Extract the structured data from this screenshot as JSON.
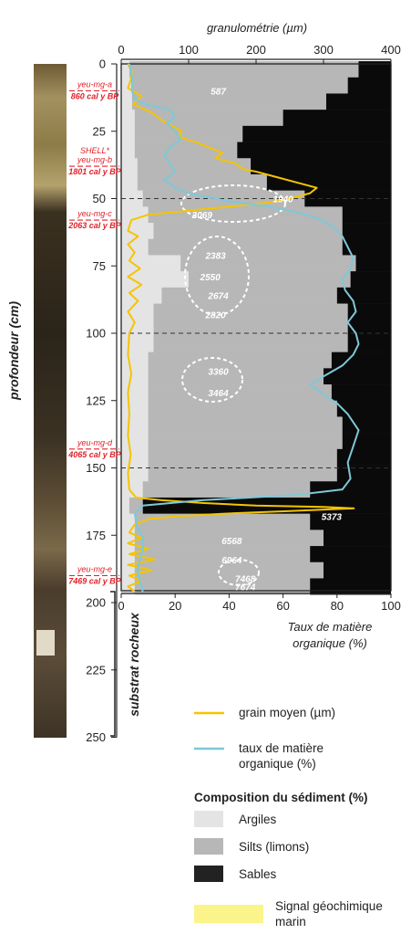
{
  "chart_data": {
    "type": "line",
    "top_axis_title": "granulométrie (µm)",
    "top_ticks": [
      0,
      100,
      200,
      300,
      400
    ],
    "bottom_axis_title": [
      "Taux de matière",
      "organique (%)"
    ],
    "bottom_ticks": [
      0,
      20,
      40,
      60,
      80,
      100
    ],
    "y_axis_title": "profondeur (cm)",
    "y_ticks": [
      0,
      25,
      50,
      75,
      100,
      125,
      150,
      175,
      200,
      225,
      250
    ],
    "substrate_label": "substrat rocheux",
    "dashed_depths": [
      50,
      100,
      150
    ],
    "samples": [
      {
        "name": "yeu-mg-a",
        "age": "860 cal y BP",
        "depth": 10
      },
      {
        "lines": [
          "SHELL*",
          "yeu-mg-b"
        ],
        "age": "1801 cal y BP",
        "depth": 38
      },
      {
        "name": "yeu-mg-c",
        "age": "2063 cal y BP",
        "depth": 58
      },
      {
        "name": "yeu-mg-d",
        "age": "4065 cal y BP",
        "depth": 143
      },
      {
        "name": "yeu-mg-e",
        "age": "7469 cal y BP",
        "depth": 190
      }
    ],
    "age_labels": [
      {
        "text": "587",
        "depth": 10,
        "x": 36
      },
      {
        "text": "1940",
        "depth": 50,
        "x": 60
      },
      {
        "text": "2069",
        "depth": 56,
        "x": 30
      },
      {
        "text": "2383",
        "depth": 71,
        "x": 35
      },
      {
        "text": "2550",
        "depth": 79,
        "x": 33
      },
      {
        "text": "2674",
        "depth": 86,
        "x": 36
      },
      {
        "text": "2820",
        "depth": 93,
        "x": 35
      },
      {
        "text": "3360",
        "depth": 114,
        "x": 36
      },
      {
        "text": "3464",
        "depth": 122,
        "x": 36
      },
      {
        "text": "5373",
        "depth": 168,
        "x": 78
      },
      {
        "text": "6568",
        "depth": 177,
        "x": 41
      },
      {
        "text": "6964",
        "depth": 184,
        "x": 41
      },
      {
        "text": "7468",
        "depth": 191,
        "x": 46
      },
      {
        "text": "7674",
        "depth": 194,
        "x": 46
      }
    ],
    "series": [
      {
        "name": "grain moyen (µm)",
        "axis": "top",
        "color": "#f5c400",
        "points": [
          [
            10,
            0
          ],
          [
            16,
            3
          ],
          [
            14,
            6
          ],
          [
            10,
            9
          ],
          [
            30,
            12
          ],
          [
            18,
            15
          ],
          [
            45,
            18
          ],
          [
            60,
            21
          ],
          [
            75,
            23
          ],
          [
            90,
            25
          ],
          [
            85,
            27
          ],
          [
            110,
            29
          ],
          [
            130,
            31
          ],
          [
            150,
            33
          ],
          [
            140,
            35
          ],
          [
            170,
            37
          ],
          [
            180,
            39
          ],
          [
            200,
            40
          ],
          [
            230,
            42
          ],
          [
            260,
            44
          ],
          [
            290,
            46
          ],
          [
            280,
            48
          ],
          [
            250,
            50
          ],
          [
            230,
            51
          ],
          [
            200,
            52
          ],
          [
            160,
            53
          ],
          [
            120,
            54
          ],
          [
            80,
            55
          ],
          [
            40,
            56
          ],
          [
            15,
            58
          ],
          [
            10,
            62
          ],
          [
            25,
            64
          ],
          [
            10,
            67
          ],
          [
            20,
            70
          ],
          [
            12,
            73
          ],
          [
            28,
            76
          ],
          [
            10,
            79
          ],
          [
            30,
            82
          ],
          [
            12,
            85
          ],
          [
            25,
            88
          ],
          [
            10,
            92
          ],
          [
            20,
            96
          ],
          [
            12,
            100
          ],
          [
            10,
            108
          ],
          [
            15,
            115
          ],
          [
            10,
            122
          ],
          [
            12,
            130
          ],
          [
            10,
            138
          ],
          [
            14,
            145
          ],
          [
            10,
            152
          ],
          [
            12,
            158
          ],
          [
            22,
            161
          ],
          [
            60,
            162
          ],
          [
            120,
            163
          ],
          [
            200,
            164
          ],
          [
            300,
            164.5
          ],
          [
            345,
            165
          ],
          [
            250,
            166
          ],
          [
            150,
            167
          ],
          [
            80,
            168
          ],
          [
            40,
            169
          ],
          [
            20,
            171
          ],
          [
            12,
            174
          ],
          [
            30,
            176
          ],
          [
            10,
            178
          ],
          [
            40,
            180
          ],
          [
            12,
            182
          ],
          [
            50,
            184
          ],
          [
            10,
            186
          ],
          [
            45,
            188
          ],
          [
            12,
            190
          ],
          [
            30,
            192
          ],
          [
            10,
            194
          ],
          [
            20,
            196
          ]
        ]
      },
      {
        "name": "taux de matière organique (%)",
        "axis": "bottom",
        "color": "#7ec8d8",
        "points": [
          [
            3,
            0
          ],
          [
            4,
            5
          ],
          [
            4,
            10
          ],
          [
            5,
            13
          ],
          [
            9,
            15
          ],
          [
            18,
            17
          ],
          [
            20,
            20
          ],
          [
            17,
            22
          ],
          [
            20,
            25
          ],
          [
            22,
            28
          ],
          [
            18,
            31
          ],
          [
            16,
            34
          ],
          [
            18,
            37
          ],
          [
            20,
            40
          ],
          [
            16,
            43
          ],
          [
            20,
            46
          ],
          [
            25,
            48
          ],
          [
            40,
            51
          ],
          [
            55,
            53
          ],
          [
            65,
            55
          ],
          [
            72,
            57
          ],
          [
            78,
            60
          ],
          [
            82,
            64
          ],
          [
            84,
            68
          ],
          [
            86,
            72
          ],
          [
            85,
            76
          ],
          [
            82,
            80
          ],
          [
            83,
            84
          ],
          [
            86,
            88
          ],
          [
            87,
            92
          ],
          [
            84,
            96
          ],
          [
            87,
            100
          ],
          [
            88,
            104
          ],
          [
            86,
            108
          ],
          [
            82,
            112
          ],
          [
            75,
            116
          ],
          [
            70,
            119
          ],
          [
            74,
            122
          ],
          [
            80,
            126
          ],
          [
            84,
            130
          ],
          [
            88,
            136
          ],
          [
            86,
            142
          ],
          [
            84,
            148
          ],
          [
            85,
            154
          ],
          [
            82,
            158
          ],
          [
            65,
            160
          ],
          [
            30,
            162
          ],
          [
            8,
            164
          ],
          [
            5,
            167
          ],
          [
            6,
            172
          ],
          [
            8,
            176
          ],
          [
            8,
            180
          ],
          [
            7,
            184
          ],
          [
            6,
            188
          ],
          [
            7,
            192
          ],
          [
            8,
            196
          ]
        ]
      }
    ],
    "bars": [
      {
        "depth": 2,
        "clay": 3,
        "silt": 85
      },
      {
        "depth": 8,
        "clay": 4,
        "silt": 80
      },
      {
        "depth": 14,
        "clay": 4,
        "silt": 72
      },
      {
        "depth": 20,
        "clay": 5,
        "silt": 55
      },
      {
        "depth": 26,
        "clay": 5,
        "silt": 40
      },
      {
        "depth": 32,
        "clay": 5,
        "silt": 38
      },
      {
        "depth": 38,
        "clay": 6,
        "silt": 42
      },
      {
        "depth": 44,
        "clay": 6,
        "silt": 48
      },
      {
        "depth": 50,
        "clay": 8,
        "silt": 60
      },
      {
        "depth": 56,
        "clay": 10,
        "silt": 72
      },
      {
        "depth": 62,
        "clay": 12,
        "silt": 70
      },
      {
        "depth": 68,
        "clay": 10,
        "silt": 72
      },
      {
        "depth": 74,
        "clay": 22,
        "silt": 65
      },
      {
        "depth": 80,
        "clay": 25,
        "silt": 60
      },
      {
        "depth": 86,
        "clay": 15,
        "silt": 65
      },
      {
        "depth": 92,
        "clay": 12,
        "silt": 72
      },
      {
        "depth": 98,
        "clay": 12,
        "silt": 72
      },
      {
        "depth": 104,
        "clay": 12,
        "silt": 72
      },
      {
        "depth": 110,
        "clay": 10,
        "silt": 68
      },
      {
        "depth": 116,
        "clay": 10,
        "silt": 65
      },
      {
        "depth": 122,
        "clay": 10,
        "silt": 68
      },
      {
        "depth": 128,
        "clay": 10,
        "silt": 70
      },
      {
        "depth": 134,
        "clay": 10,
        "silt": 72
      },
      {
        "depth": 140,
        "clay": 10,
        "silt": 72
      },
      {
        "depth": 146,
        "clay": 10,
        "silt": 70
      },
      {
        "depth": 152,
        "clay": 10,
        "silt": 70
      },
      {
        "depth": 158,
        "clay": 8,
        "silt": 62
      },
      {
        "depth": 164,
        "clay": 3,
        "silt": 5
      },
      {
        "depth": 170,
        "clay": 5,
        "silt": 65
      },
      {
        "depth": 176,
        "clay": 5,
        "silt": 70
      },
      {
        "depth": 182,
        "clay": 5,
        "silt": 65
      },
      {
        "depth": 188,
        "clay": 5,
        "silt": 70
      },
      {
        "depth": 194,
        "clay": 5,
        "silt": 65
      }
    ],
    "legend": {
      "grain": "grain moyen (µm)",
      "toc": [
        "taux de matière",
        "organique (%)"
      ],
      "composition_title": "Composition du sédiment  (%)",
      "clay": "Argiles",
      "silt": "Silts (limons)",
      "sand": "Sables",
      "marine": [
        "Signal géochimique",
        "marin"
      ]
    },
    "colors": {
      "clay": "#e4e4e4",
      "silt": "#b7b7b7",
      "sand": "#0a0a0a",
      "grain": "#f5c400",
      "toc": "#7ec8d8",
      "sample_label": "#e0202a",
      "marine": "#fbf48a"
    }
  }
}
